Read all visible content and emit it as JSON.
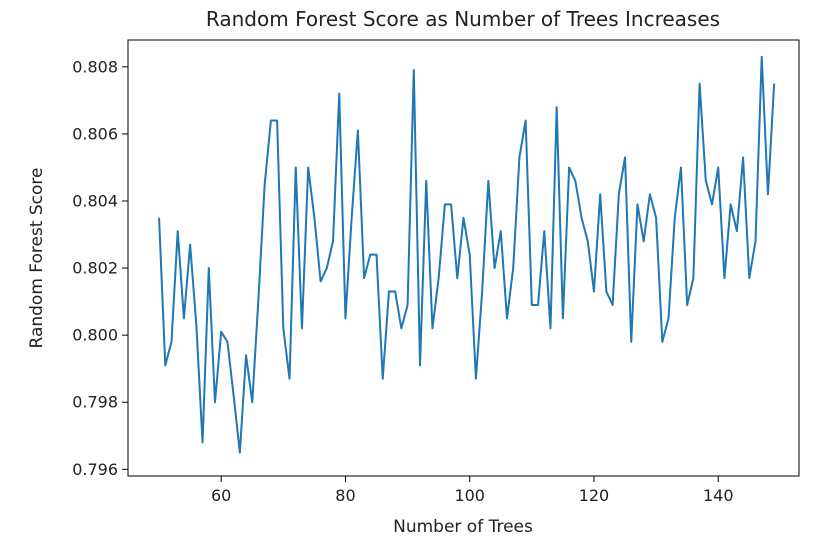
{
  "chart_data": {
    "type": "line",
    "title": "Random Forest Score as Number of Trees Increases",
    "xlabel": "Number of Trees",
    "ylabel": "Random Forest Score",
    "xlim": [
      45,
      153
    ],
    "ylim": [
      0.7958,
      0.8088
    ],
    "xticks": [
      60,
      80,
      100,
      120,
      140
    ],
    "yticks": [
      0.796,
      0.798,
      0.8,
      0.802,
      0.804,
      0.806,
      0.808
    ],
    "xtick_labels": [
      "60",
      "80",
      "100",
      "120",
      "140"
    ],
    "ytick_labels": [
      "0.796",
      "0.798",
      "0.800",
      "0.802",
      "0.804",
      "0.806",
      "0.808"
    ],
    "grid": false,
    "colors": {
      "line": "#1f77b4",
      "axis": "#000000",
      "background": "#ffffff"
    },
    "series": [
      {
        "x": [
          50,
          51,
          52,
          53,
          54,
          55,
          56,
          57,
          58,
          59,
          60,
          61,
          62,
          63,
          64,
          65,
          66,
          67,
          68,
          69,
          70,
          71,
          72,
          73,
          74,
          75,
          76,
          77,
          78,
          79,
          80,
          81,
          82,
          83,
          84,
          85,
          86,
          87,
          88,
          89,
          90,
          91,
          92,
          93,
          94,
          95,
          96,
          97,
          98,
          99,
          100,
          101,
          102,
          103,
          104,
          105,
          106,
          107,
          108,
          109,
          110,
          111,
          112,
          113,
          114,
          115,
          116,
          117,
          118,
          119,
          120,
          121,
          122,
          123,
          124,
          125,
          126,
          127,
          128,
          129,
          130,
          131,
          132,
          133,
          134,
          135,
          136,
          137,
          138,
          139,
          140,
          141,
          142,
          143,
          144,
          145,
          146,
          147,
          148,
          149
        ],
        "values": [
          0.8035,
          0.7991,
          0.7998,
          0.8031,
          0.8005,
          0.8027,
          0.8003,
          0.7968,
          0.802,
          0.798,
          0.8001,
          0.7998,
          0.7982,
          0.7965,
          0.7994,
          0.798,
          0.8011,
          0.8045,
          0.8064,
          0.8064,
          0.8002,
          0.7987,
          0.805,
          0.8002,
          0.805,
          0.8035,
          0.8016,
          0.802,
          0.8028,
          0.8072,
          0.8005,
          0.8035,
          0.8061,
          0.8017,
          0.8024,
          0.8024,
          0.7987,
          0.8013,
          0.8013,
          0.8002,
          0.8009,
          0.8079,
          0.7991,
          0.8046,
          0.8002,
          0.8017,
          0.8039,
          0.8039,
          0.8017,
          0.8035,
          0.8024,
          0.7987,
          0.8013,
          0.8046,
          0.802,
          0.8031,
          0.8005,
          0.802,
          0.8053,
          0.8064,
          0.8009,
          0.8009,
          0.8031,
          0.8002,
          0.8068,
          0.8005,
          0.805,
          0.8046,
          0.8035,
          0.8028,
          0.8013,
          0.8042,
          0.8013,
          0.8009,
          0.8042,
          0.8053,
          0.7998,
          0.8039,
          0.8028,
          0.8042,
          0.8035,
          0.7998,
          0.8005,
          0.8035,
          0.805,
          0.8009,
          0.8017,
          0.8075,
          0.8046,
          0.8039,
          0.805,
          0.8017,
          0.8039,
          0.8031,
          0.8053,
          0.8017,
          0.8028,
          0.8083,
          0.8042,
          0.8075
        ]
      }
    ]
  }
}
